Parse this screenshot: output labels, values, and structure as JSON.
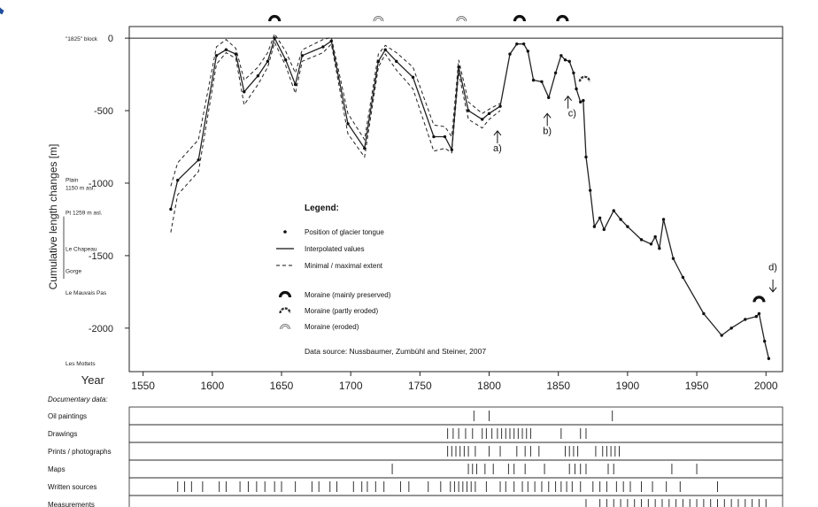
{
  "chart_data": {
    "type": "line",
    "ylabel": "Cumulative length changes [m]",
    "xlabel": "Year",
    "x_ticks": [
      1550,
      1600,
      1650,
      1700,
      1750,
      1800,
      1850,
      1900,
      1950,
      2000
    ],
    "y_ticks": [
      0,
      -500,
      -1000,
      -1500,
      -2000
    ],
    "xlim": [
      1540,
      2012
    ],
    "ylim": [
      -2300,
      80
    ],
    "y_annotations": [
      {
        "y": 0,
        "text": "\"1825\" block"
      },
      {
        "y": -1000,
        "text": "Plain\n1150 m asl."
      },
      {
        "y": -1200,
        "text": "Pt 1259 m asl."
      },
      {
        "y": -1450,
        "text": "Le Chapeau"
      },
      {
        "y": -1600,
        "text": "Gorge"
      },
      {
        "y": -1750,
        "text": "Le Mauvais Pas"
      },
      {
        "y": -2240,
        "text": "Les Mottets"
      }
    ],
    "series": [
      {
        "name": "Interpolated values",
        "x": [
          1570,
          1575,
          1590,
          1603,
          1610,
          1617,
          1623,
          1633,
          1640,
          1645,
          1653,
          1660,
          1665,
          1680,
          1686,
          1698,
          1710,
          1720,
          1725,
          1733,
          1745,
          1760,
          1768,
          1773,
          1778,
          1785,
          1795,
          1800,
          1808,
          1815,
          1820,
          1825,
          1828,
          1832,
          1838,
          1843,
          1848,
          1852,
          1855,
          1858,
          1861,
          1863,
          1866,
          1868,
          1870,
          1873,
          1876,
          1880,
          1883,
          1890,
          1895,
          1900,
          1910,
          1917,
          1920,
          1923,
          1926,
          1933,
          1940,
          1955,
          1968,
          1975,
          1985,
          1993,
          1995,
          1999,
          2002
        ],
        "y": [
          -1180,
          -980,
          -840,
          -120,
          -80,
          -110,
          -370,
          -260,
          -160,
          0,
          -150,
          -320,
          -120,
          -60,
          -20,
          -590,
          -760,
          -160,
          -80,
          -160,
          -270,
          -680,
          -680,
          -770,
          -200,
          -500,
          -560,
          -520,
          -470,
          -110,
          -40,
          -40,
          -90,
          -290,
          -300,
          -410,
          -240,
          -120,
          -150,
          -160,
          -240,
          -350,
          -440,
          -430,
          -820,
          -1050,
          -1300,
          -1240,
          -1320,
          -1190,
          -1250,
          -1300,
          -1390,
          -1420,
          -1370,
          -1450,
          -1250,
          -1520,
          -1650,
          -1900,
          -2050,
          -2000,
          -1940,
          -1920,
          -1900,
          -2090,
          -2210
        ]
      },
      {
        "name": "Minimal / maximal extent",
        "x": [
          1570,
          1575,
          1590,
          1603,
          1610,
          1617,
          1623,
          1633,
          1640,
          1645,
          1653,
          1660,
          1665,
          1680,
          1686,
          1698,
          1710,
          1720,
          1725,
          1733,
          1745,
          1760,
          1768,
          1773,
          1778,
          1785,
          1795,
          1800,
          1808
        ],
        "y": [
          -1340,
          -1080,
          -920,
          -180,
          -100,
          -140,
          -460,
          -320,
          -200,
          -30,
          -190,
          -380,
          -160,
          -100,
          -40,
          -660,
          -820,
          -200,
          -110,
          -220,
          -350,
          -780,
          -760,
          -790,
          -240,
          -560,
          -620,
          -560,
          -500
        ]
      },
      {
        "name": "Minimal / maximal extent",
        "x": [
          1570,
          1575,
          1590,
          1603,
          1610,
          1617,
          1623,
          1633,
          1640,
          1645,
          1653,
          1660,
          1665,
          1680,
          1686,
          1698,
          1710,
          1720,
          1725,
          1733,
          1745,
          1760,
          1768,
          1773,
          1778,
          1785,
          1795,
          1800,
          1808
        ],
        "y": [
          -1020,
          -860,
          -700,
          -60,
          -10,
          -70,
          -290,
          -200,
          -100,
          30,
          -90,
          -240,
          -80,
          -10,
          5,
          -520,
          -700,
          -110,
          -50,
          -100,
          -200,
          -600,
          -610,
          -680,
          -150,
          -440,
          -520,
          -490,
          -450
        ]
      }
    ],
    "moraines": [
      {
        "x": 1645,
        "type": "mainly preserved"
      },
      {
        "x": 1720,
        "type": "eroded"
      },
      {
        "x": 1780,
        "type": "eroded"
      },
      {
        "x": 1822,
        "type": "mainly preserved"
      },
      {
        "x": 1853,
        "type": "mainly preserved"
      },
      {
        "x": 1869,
        "type": "partly eroded",
        "y": -300
      },
      {
        "x": 1995,
        "type": "mainly preserved",
        "y": -1820
      }
    ],
    "annotations": [
      {
        "text": "a)",
        "x": 1806,
        "y": -780,
        "arrow": "up",
        "arrow_x": 1806,
        "arrow_y": -640
      },
      {
        "text": "b)",
        "x": 1842,
        "y": -660,
        "arrow": "up",
        "arrow_x": 1842,
        "arrow_y": -520
      },
      {
        "text": "c)",
        "x": 1860,
        "y": -540,
        "arrow": "up",
        "arrow_x": 1857,
        "arrow_y": -400
      },
      {
        "text": "d)",
        "x": 2005,
        "y": -1600,
        "arrow": "down",
        "arrow_x": 2005,
        "arrow_y": -1750
      }
    ],
    "legend": {
      "title": "Legend:",
      "items": [
        {
          "kind": "point",
          "label": "Position of glacier tongue"
        },
        {
          "kind": "solid",
          "label": "Interpolated values"
        },
        {
          "kind": "dashed",
          "label": "Minimal / maximal extent"
        },
        {
          "kind": "moraine-preserved",
          "label": "Moraine (mainly preserved)"
        },
        {
          "kind": "moraine-partly",
          "label": "Moraine (partly eroded)"
        },
        {
          "kind": "moraine-eroded",
          "label": "Moraine (eroded)"
        }
      ],
      "source": "Data source: Nussbaumer, Zumbühl and Steiner, 2007"
    },
    "documentary": {
      "title": "Documentary data:",
      "rows": [
        {
          "label": "Oil paintings",
          "years": [
            1789,
            1800,
            1889
          ]
        },
        {
          "label": "Drawings",
          "years": [
            1770,
            1774,
            1778,
            1783,
            1788,
            1795,
            1798,
            1802,
            1806,
            1809,
            1812,
            1815,
            1818,
            1821,
            1824,
            1827,
            1830,
            1852,
            1866,
            1870
          ]
        },
        {
          "label": "Prints / photographs",
          "years": [
            1770,
            1773,
            1776,
            1779,
            1782,
            1785,
            1790,
            1800,
            1808,
            1820,
            1826,
            1830,
            1836,
            1855,
            1858,
            1861,
            1864,
            1877,
            1882,
            1885,
            1888,
            1891,
            1894
          ]
        },
        {
          "label": "Maps",
          "years": [
            1730,
            1785,
            1788,
            1791,
            1797,
            1803,
            1814,
            1818,
            1826,
            1840,
            1858,
            1862,
            1866,
            1870,
            1886,
            1890,
            1932,
            1950
          ]
        },
        {
          "label": "Written sources",
          "years": [
            1575,
            1580,
            1585,
            1593,
            1605,
            1610,
            1620,
            1626,
            1632,
            1638,
            1645,
            1650,
            1660,
            1672,
            1677,
            1685,
            1690,
            1702,
            1708,
            1712,
            1718,
            1724,
            1736,
            1742,
            1756,
            1765,
            1772,
            1775,
            1778,
            1781,
            1784,
            1787,
            1790,
            1798,
            1808,
            1812,
            1818,
            1824,
            1828,
            1833,
            1838,
            1843,
            1848,
            1852,
            1856,
            1860,
            1866,
            1875,
            1880,
            1885,
            1892,
            1897,
            1902,
            1910,
            1918,
            1928,
            1938,
            1965
          ]
        },
        {
          "label": "Measurements",
          "years": [
            1870,
            1880,
            1885,
            1890,
            1895,
            1900,
            1905,
            1910,
            1915,
            1920,
            1925,
            1930,
            1935,
            1940,
            1945,
            1950,
            1955,
            1960,
            1965,
            1970,
            1975,
            1980,
            1985,
            1990,
            1995,
            2000
          ]
        }
      ]
    }
  }
}
